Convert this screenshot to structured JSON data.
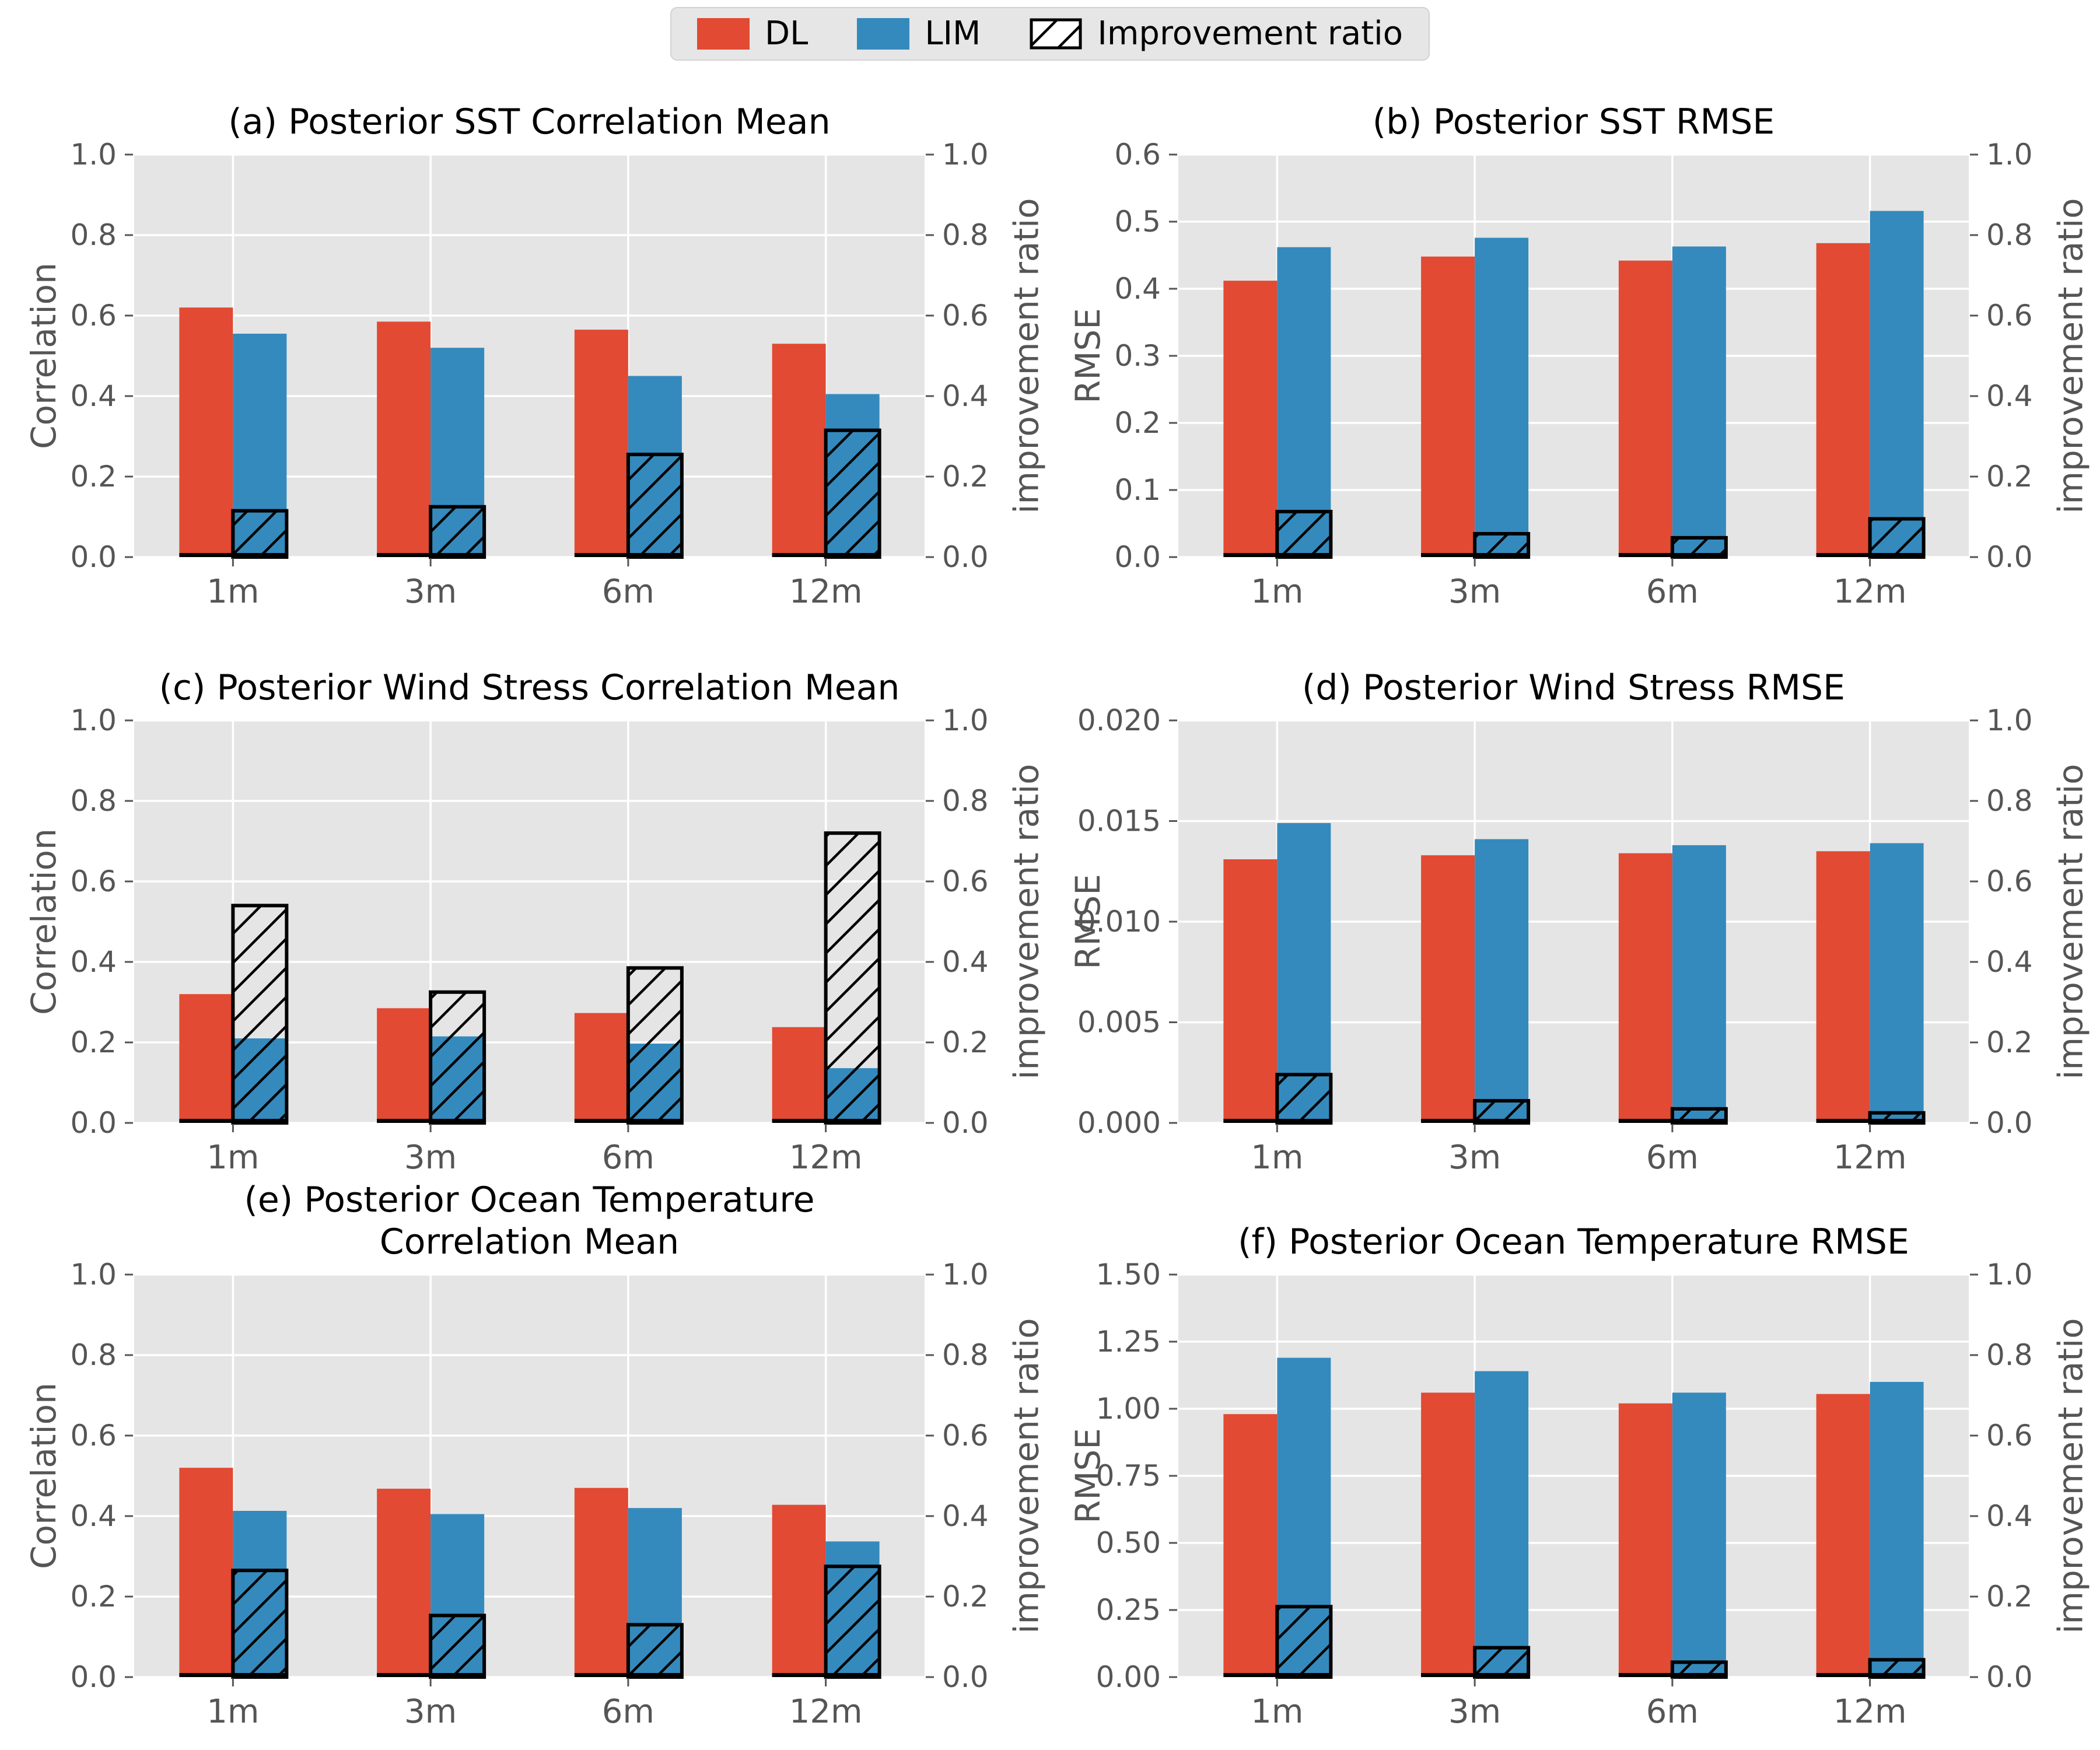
{
  "colors": {
    "dl": "#E24A33",
    "lim": "#348ABD",
    "improvement_edge": "#000000",
    "panel_bg": "#E5E5E5",
    "grid": "#FFFFFF",
    "tick_text": "#555555",
    "title_text": "#000000",
    "page_bg": "#FFFFFF"
  },
  "legend": {
    "items": [
      {
        "label": "DL",
        "swatch": "solid-red"
      },
      {
        "label": "LIM",
        "swatch": "solid-blue"
      },
      {
        "label": "Improvement ratio",
        "swatch": "hatch"
      }
    ]
  },
  "categories": [
    "1m",
    "3m",
    "6m",
    "12m"
  ],
  "right_axis": {
    "label": "improvement ratio",
    "ticks": [
      "0.0",
      "0.2",
      "0.4",
      "0.6",
      "0.8",
      "1.0"
    ],
    "lim": [
      0,
      1
    ]
  },
  "chart_data": [
    {
      "id": "a",
      "type": "bar",
      "title": "(a) Posterior SST Correlation Mean",
      "ylabel": "Correlation",
      "ylim": [
        0,
        1.0
      ],
      "yticks": [
        "0.0",
        "0.2",
        "0.4",
        "0.6",
        "0.8",
        "1.0"
      ],
      "categories": [
        "1m",
        "3m",
        "6m",
        "12m"
      ],
      "series": [
        {
          "name": "DL",
          "axis": "left",
          "values": [
            0.62,
            0.585,
            0.565,
            0.53
          ]
        },
        {
          "name": "LIM",
          "axis": "left",
          "values": [
            0.555,
            0.52,
            0.45,
            0.405
          ]
        },
        {
          "name": "Improvement ratio",
          "axis": "right",
          "values": [
            0.115,
            0.125,
            0.255,
            0.315
          ]
        }
      ]
    },
    {
      "id": "b",
      "type": "bar",
      "title": "(b) Posterior SST RMSE",
      "ylabel": "RMSE",
      "ylim": [
        0,
        0.6
      ],
      "yticks": [
        "0.0",
        "0.1",
        "0.2",
        "0.3",
        "0.4",
        "0.5",
        "0.6"
      ],
      "categories": [
        "1m",
        "3m",
        "6m",
        "12m"
      ],
      "series": [
        {
          "name": "DL",
          "axis": "left",
          "values": [
            0.412,
            0.448,
            0.442,
            0.468
          ]
        },
        {
          "name": "LIM",
          "axis": "left",
          "values": [
            0.462,
            0.476,
            0.463,
            0.516
          ]
        },
        {
          "name": "Improvement ratio",
          "axis": "right",
          "values": [
            0.113,
            0.058,
            0.048,
            0.095
          ]
        }
      ]
    },
    {
      "id": "c",
      "type": "bar",
      "title": "(c) Posterior Wind Stress Correlation Mean",
      "ylabel": "Correlation",
      "ylim": [
        0,
        1.0
      ],
      "yticks": [
        "0.0",
        "0.2",
        "0.4",
        "0.6",
        "0.8",
        "1.0"
      ],
      "categories": [
        "1m",
        "3m",
        "6m",
        "12m"
      ],
      "series": [
        {
          "name": "DL",
          "axis": "left",
          "values": [
            0.32,
            0.285,
            0.273,
            0.238
          ]
        },
        {
          "name": "LIM",
          "axis": "left",
          "values": [
            0.21,
            0.215,
            0.197,
            0.136
          ]
        },
        {
          "name": "Improvement ratio",
          "axis": "right",
          "values": [
            0.54,
            0.325,
            0.385,
            0.72
          ]
        }
      ]
    },
    {
      "id": "d",
      "type": "bar",
      "title": "(d) Posterior Wind Stress RMSE",
      "ylabel": "RMSE",
      "ylim": [
        0,
        0.02
      ],
      "yticks": [
        "0.000",
        "0.005",
        "0.010",
        "0.015",
        "0.020"
      ],
      "categories": [
        "1m",
        "3m",
        "6m",
        "12m"
      ],
      "series": [
        {
          "name": "DL",
          "axis": "left",
          "values": [
            0.0131,
            0.0133,
            0.0134,
            0.0135
          ]
        },
        {
          "name": "LIM",
          "axis": "left",
          "values": [
            0.0149,
            0.0141,
            0.0138,
            0.0139
          ]
        },
        {
          "name": "Improvement ratio",
          "axis": "right",
          "values": [
            0.12,
            0.055,
            0.035,
            0.025
          ]
        }
      ]
    },
    {
      "id": "e",
      "type": "bar",
      "title": "(e) Posterior Ocean Temperature\nCorrelation Mean",
      "ylabel": "Correlation",
      "ylim": [
        0,
        1.0
      ],
      "yticks": [
        "0.0",
        "0.2",
        "0.4",
        "0.6",
        "0.8",
        "1.0"
      ],
      "categories": [
        "1m",
        "3m",
        "6m",
        "12m"
      ],
      "series": [
        {
          "name": "DL",
          "axis": "left",
          "values": [
            0.52,
            0.468,
            0.47,
            0.428
          ]
        },
        {
          "name": "LIM",
          "axis": "left",
          "values": [
            0.413,
            0.405,
            0.42,
            0.337
          ]
        },
        {
          "name": "Improvement ratio",
          "axis": "right",
          "values": [
            0.265,
            0.153,
            0.13,
            0.275
          ]
        }
      ]
    },
    {
      "id": "f",
      "type": "bar",
      "title": "(f) Posterior Ocean Temperature RMSE",
      "ylabel": "RMSE",
      "ylim": [
        0,
        1.5
      ],
      "yticks": [
        "0.00",
        "0.25",
        "0.50",
        "0.75",
        "1.00",
        "1.25",
        "1.50"
      ],
      "categories": [
        "1m",
        "3m",
        "6m",
        "12m"
      ],
      "series": [
        {
          "name": "DL",
          "axis": "left",
          "values": [
            0.98,
            1.06,
            1.02,
            1.055
          ]
        },
        {
          "name": "LIM",
          "axis": "left",
          "values": [
            1.19,
            1.14,
            1.06,
            1.1
          ]
        },
        {
          "name": "Improvement ratio",
          "axis": "right",
          "values": [
            0.175,
            0.073,
            0.037,
            0.043
          ]
        }
      ]
    }
  ]
}
